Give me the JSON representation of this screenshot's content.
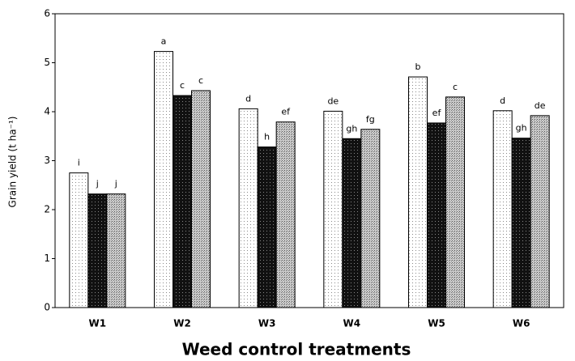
{
  "chart_data": {
    "type": "bar",
    "xlabel": "Weed control treatments",
    "ylabel": "Grain yield (t ha⁻¹)",
    "categories": [
      "W1",
      "W2",
      "W3",
      "W4",
      "W5",
      "W6"
    ],
    "series": [
      {
        "color": "#f4f4f4",
        "values": [
          2.75,
          5.23,
          4.06,
          4.01,
          4.71,
          4.02
        ],
        "value_labels": [
          "i",
          "a",
          "d",
          "de",
          "b",
          "d"
        ]
      },
      {
        "color": "#111111",
        "values": [
          2.32,
          4.33,
          3.28,
          3.45,
          3.77,
          3.46
        ],
        "value_labels": [
          "j",
          "c",
          "h",
          "gh",
          "ef",
          "gh"
        ]
      },
      {
        "color": "#9a9a9a",
        "values": [
          2.32,
          4.43,
          3.79,
          3.64,
          4.3,
          3.92
        ],
        "value_labels": [
          "j",
          "c",
          "ef",
          "fg",
          "c",
          "de"
        ]
      }
    ],
    "ylim": [
      0,
      6
    ],
    "yticks": [
      0,
      1,
      2,
      3,
      4,
      5,
      6
    ],
    "grid": false
  }
}
